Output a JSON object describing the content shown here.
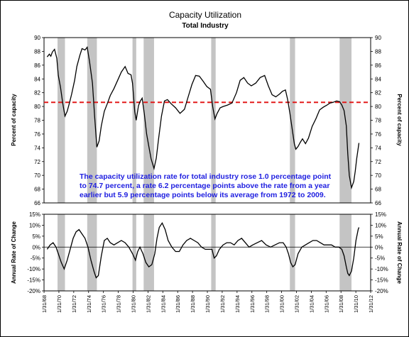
{
  "chart_data": [
    {
      "type": "line",
      "title": "Capacity Utilization",
      "subtitle": "Total Industry",
      "ylabel": "Percent of capacity",
      "y2label": "Percent of capacity",
      "ylim": [
        66,
        90
      ],
      "yticks": [
        "66",
        "68",
        "70",
        "72",
        "74",
        "76",
        "78",
        "80",
        "82",
        "84",
        "86",
        "88",
        "90"
      ],
      "xlim": [
        1968.08,
        2012.08
      ],
      "recessions": [
        [
          1969.9,
          1970.9
        ],
        [
          1973.9,
          1975.2
        ],
        [
          1980.0,
          1980.5
        ],
        [
          1981.5,
          1982.9
        ],
        [
          1990.6,
          1991.2
        ],
        [
          2001.2,
          2001.9
        ],
        [
          2007.9,
          2009.5
        ]
      ],
      "reference_line": {
        "value": 80.6,
        "style": "dashed",
        "color": "#e21b1b"
      },
      "series": [
        {
          "x": [
            1968.5,
            1968.8,
            1969.0,
            1969.2,
            1969.5,
            1969.8,
            1970.0,
            1970.3,
            1970.6,
            1970.9,
            1971.2,
            1971.5,
            1971.8,
            1972.2,
            1972.5,
            1972.9,
            1973.2,
            1973.6,
            1973.9,
            1974.2,
            1974.6,
            1974.9,
            1975.2,
            1975.5,
            1975.8,
            1976.2,
            1976.6,
            1977.0,
            1977.5,
            1978.0,
            1978.5,
            1979.0,
            1979.4,
            1979.8,
            1980.0,
            1980.3,
            1980.5,
            1980.8,
            1981.0,
            1981.3,
            1981.6,
            1981.9,
            1982.2,
            1982.5,
            1982.9,
            1983.2,
            1983.5,
            1983.9,
            1984.3,
            1984.7,
            1985.2,
            1985.8,
            1986.4,
            1987.0,
            1987.5,
            1988.0,
            1988.5,
            1989.0,
            1989.5,
            1990.0,
            1990.5,
            1990.8,
            1991.1,
            1991.4,
            1991.8,
            1992.2,
            1992.8,
            1993.4,
            1994.0,
            1994.5,
            1995.0,
            1995.5,
            1996.0,
            1996.6,
            1997.2,
            1997.8,
            1998.3,
            1998.8,
            1999.3,
            1999.8,
            2000.2,
            2000.6,
            2000.9,
            2001.2,
            2001.5,
            2001.8,
            2002.0,
            2002.3,
            2002.6,
            2002.9,
            2003.3,
            2003.7,
            2004.2,
            2004.7,
            2005.2,
            2005.7,
            2006.2,
            2006.6,
            2007.0,
            2007.5,
            2007.9,
            2008.2,
            2008.5,
            2008.8,
            2009.0,
            2009.2,
            2009.5,
            2009.8,
            2010.0,
            2010.2,
            2010.5
          ],
          "y": [
            87.2,
            87.6,
            87.3,
            87.9,
            88.3,
            87.0,
            84.5,
            82.8,
            80.5,
            78.6,
            79.3,
            80.5,
            81.8,
            83.8,
            85.8,
            87.4,
            88.4,
            88.2,
            88.6,
            86.6,
            83.4,
            78.5,
            74.1,
            75.0,
            77.2,
            79.3,
            80.4,
            81.6,
            82.6,
            83.8,
            85.0,
            85.8,
            84.8,
            84.6,
            83.4,
            79.2,
            78.0,
            80.1,
            80.7,
            81.2,
            78.9,
            76.0,
            74.2,
            72.4,
            71.0,
            72.5,
            75.2,
            78.6,
            80.8,
            81.0,
            80.4,
            79.8,
            79.0,
            79.6,
            81.4,
            83.2,
            84.5,
            84.4,
            83.7,
            82.9,
            82.5,
            80.0,
            78.2,
            79.0,
            79.8,
            80.0,
            80.2,
            80.5,
            82.0,
            83.8,
            84.2,
            83.4,
            83.0,
            83.4,
            84.2,
            84.5,
            83.0,
            81.7,
            81.4,
            81.8,
            82.2,
            82.4,
            81.0,
            79.0,
            76.8,
            74.6,
            73.8,
            74.2,
            74.8,
            75.3,
            74.6,
            75.4,
            77.1,
            78.2,
            79.5,
            79.9,
            80.2,
            80.5,
            80.6,
            80.8,
            80.7,
            80.2,
            79.4,
            77.2,
            73.1,
            70.0,
            68.2,
            69.1,
            70.6,
            72.4,
            74.7
          ]
        }
      ],
      "annotation": [
        "The capacity utilization rate for total industry rose 1.0 percentage point",
        "to 74.7 percent, a rate 6.2 percentage points above the rate from a year",
        "earlier but 5.9 percentage points below its average from 1972 to 2009."
      ]
    },
    {
      "type": "line",
      "ylabel": "Annual Rate of Change",
      "y2label": "Annual Rate of Change",
      "ylim": [
        -20,
        15
      ],
      "yticks": [
        "-20%",
        "-15%",
        "-10%",
        "-5%",
        "0%",
        "5%",
        "10%",
        "15%"
      ],
      "xlim": [
        1968.08,
        2012.08
      ],
      "xticks": [
        "1/31/68",
        "1/31/70",
        "1/31/72",
        "1/31/74",
        "1/31/76",
        "1/31/78",
        "1/31/80",
        "1/31/82",
        "1/31/84",
        "1/31/86",
        "1/31/88",
        "1/31/90",
        "1/31/92",
        "1/31/94",
        "1/31/96",
        "1/31/98",
        "1/31/00",
        "1/31/02",
        "1/31/04",
        "1/31/06",
        "1/31/08",
        "1/31/10",
        "1/31/12"
      ],
      "series": [
        {
          "x": [
            1968.5,
            1968.9,
            1969.3,
            1969.7,
            1970.0,
            1970.4,
            1970.8,
            1971.2,
            1971.6,
            1972.0,
            1972.4,
            1972.8,
            1973.2,
            1973.6,
            1974.0,
            1974.4,
            1974.8,
            1975.1,
            1975.4,
            1975.8,
            1976.2,
            1976.6,
            1977.0,
            1977.5,
            1978.0,
            1978.5,
            1979.0,
            1979.5,
            1980.0,
            1980.4,
            1980.7,
            1981.0,
            1981.4,
            1981.8,
            1982.2,
            1982.6,
            1983.0,
            1983.3,
            1983.6,
            1984.0,
            1984.4,
            1984.8,
            1985.3,
            1985.8,
            1986.3,
            1986.8,
            1987.3,
            1987.8,
            1988.3,
            1988.8,
            1989.3,
            1989.8,
            1990.3,
            1990.7,
            1991.0,
            1991.3,
            1991.7,
            1992.2,
            1992.7,
            1993.2,
            1993.7,
            1994.2,
            1994.7,
            1995.2,
            1995.7,
            1996.2,
            1996.8,
            1997.4,
            1998.0,
            1998.6,
            1999.2,
            1999.8,
            2000.3,
            2000.7,
            2001.0,
            2001.3,
            2001.6,
            2001.9,
            2002.3,
            2002.8,
            2003.3,
            2003.8,
            2004.3,
            2004.8,
            2005.3,
            2005.8,
            2006.3,
            2006.8,
            2007.3,
            2007.8,
            2008.2,
            2008.5,
            2008.8,
            2009.0,
            2009.2,
            2009.5,
            2009.8,
            2010.1,
            2010.4,
            2010.5
          ],
          "y": [
            -1,
            1,
            2,
            0,
            -3,
            -7,
            -10,
            -6,
            -1,
            4,
            7,
            8,
            6,
            4,
            0,
            -6,
            -11,
            -14,
            -13,
            -4,
            3,
            4,
            2,
            1,
            2,
            3,
            2,
            0,
            -3,
            -6,
            -2,
            0,
            -3,
            -7,
            -9,
            -8,
            -3,
            4,
            9,
            11,
            8,
            3,
            0,
            -2,
            -2,
            1,
            3,
            4,
            3,
            2,
            0,
            -1,
            -1,
            -1,
            -5,
            -4,
            -1,
            1,
            2,
            2,
            1,
            3,
            4,
            2,
            0,
            1,
            2,
            3,
            1,
            0,
            1,
            2,
            2,
            0,
            -3,
            -7,
            -9,
            -8,
            -3,
            0,
            1,
            2,
            3,
            3,
            2,
            1,
            1,
            1,
            0,
            0,
            -1,
            -4,
            -9,
            -12,
            -13,
            -11,
            -5,
            3,
            8,
            9
          ]
        }
      ]
    }
  ]
}
